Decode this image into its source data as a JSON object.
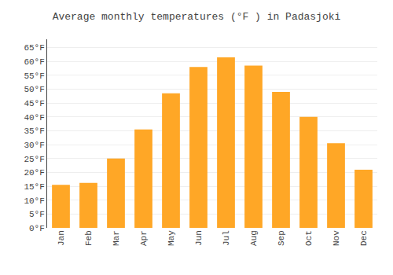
{
  "chart_data": {
    "type": "bar",
    "title": "Average monthly temperatures (°F ) in Padasjoki",
    "categories": [
      "Jan",
      "Feb",
      "Mar",
      "Apr",
      "May",
      "Jun",
      "Jul",
      "Aug",
      "Sep",
      "Oct",
      "Nov",
      "Dec"
    ],
    "values": [
      15.5,
      16.2,
      25.0,
      35.5,
      48.5,
      58.0,
      61.5,
      58.5,
      49.0,
      40.0,
      30.5,
      21.0
    ],
    "color": "#FFA726",
    "ylim": [
      0,
      68
    ],
    "yticks": [
      {
        "value": 0,
        "label": "0°F"
      },
      {
        "value": 5,
        "label": "5°F"
      },
      {
        "value": 10,
        "label": "10°F"
      },
      {
        "value": 15,
        "label": "15°F"
      },
      {
        "value": 20,
        "label": "20°F"
      },
      {
        "value": 25,
        "label": "25°F"
      },
      {
        "value": 30,
        "label": "30°F"
      },
      {
        "value": 35,
        "label": "35°F"
      },
      {
        "value": 40,
        "label": "40°F"
      },
      {
        "value": 45,
        "label": "45°F"
      },
      {
        "value": 50,
        "label": "50°F"
      },
      {
        "value": 55,
        "label": "55°F"
      },
      {
        "value": 60,
        "label": "60°F"
      },
      {
        "value": 65,
        "label": "65°F"
      }
    ],
    "grid": true
  }
}
